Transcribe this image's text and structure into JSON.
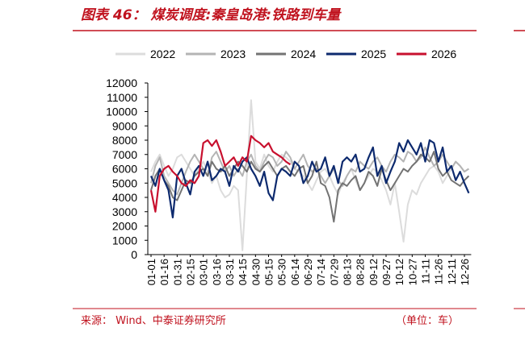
{
  "chart_data": {
    "type": "line",
    "title": "图表 46： 煤炭调度:秦皇岛港:铁路到车量",
    "source": "来源：   Wind、中泰证券研究所",
    "unit": "（单位：车）",
    "ylim": [
      0,
      12000
    ],
    "yticks": [
      0,
      1000,
      2000,
      3000,
      4000,
      5000,
      6000,
      7000,
      8000,
      9000,
      10000,
      11000,
      12000
    ],
    "categories": [
      "01-01",
      null,
      null,
      "01-16",
      null,
      null,
      "01-31",
      null,
      null,
      "02-15",
      null,
      null,
      "03-01",
      null,
      null,
      "03-16",
      null,
      null,
      "03-31",
      null,
      null,
      "04-15",
      null,
      null,
      "04-30",
      null,
      null,
      "05-15",
      null,
      null,
      "05-30",
      null,
      null,
      "06-14",
      null,
      null,
      "06-29",
      null,
      null,
      "07-14",
      null,
      null,
      "07-29",
      null,
      null,
      "08-13",
      null,
      null,
      "08-28",
      null,
      null,
      "09-12",
      null,
      null,
      "09-27",
      null,
      null,
      "10-12",
      null,
      null,
      "10-27",
      null,
      null,
      "11-11",
      null,
      null,
      "11-26",
      null,
      null,
      "12-11",
      null,
      null,
      "12-26",
      null
    ],
    "series": [
      {
        "name": "2022",
        "color": "#dcdcdc",
        "values": [
          5800,
          6500,
          7000,
          6200,
          5500,
          6000,
          6800,
          7000,
          6500,
          6000,
          5500,
          6000,
          6500,
          5800,
          5000,
          5500,
          4500,
          4000,
          4200,
          4800,
          4500,
          300,
          5500,
          10800,
          6500,
          6000,
          7000,
          6200,
          5800,
          6500,
          7000,
          6800,
          6500,
          6000,
          5800,
          5500,
          5000,
          4500,
          5200,
          5800,
          6000,
          5500,
          4800,
          4200,
          5000,
          5500,
          6000,
          5200,
          4500,
          5000,
          5500,
          6000,
          5800,
          5200,
          4500,
          3500,
          5000,
          3000,
          900,
          3500,
          4500,
          4200,
          5000,
          5500,
          6000,
          6200,
          5800,
          5000,
          5500,
          6000,
          6500,
          6200,
          5800,
          6000
        ]
      },
      {
        "name": "2023",
        "color": "#b4b4b4",
        "values": [
          5000,
          6200,
          6800,
          5500,
          5000,
          4500,
          4200,
          5000,
          5800,
          6500,
          7000,
          6500,
          6000,
          5500,
          6800,
          7200,
          6500,
          5800,
          6200,
          5500,
          6000,
          5500,
          6500,
          7000,
          6200,
          5800,
          6500,
          7000,
          6800,
          6200,
          6500,
          7200,
          6800,
          6000,
          6500,
          7000,
          6200,
          5800,
          6000,
          5500,
          5000,
          5500,
          6000,
          5200,
          4800,
          5500,
          6000,
          5800,
          6500,
          6200,
          6000,
          6500,
          6800,
          6200,
          5800,
          6500,
          7000,
          6800,
          6500,
          7200,
          7000,
          6500,
          6800,
          7500,
          6800,
          6200,
          6500,
          7000,
          6500,
          6000,
          6500,
          6200,
          5800,
          6000
        ]
      },
      {
        "name": "2024",
        "color": "#737373",
        "values": [
          4500,
          5500,
          6000,
          5200,
          4800,
          4000,
          3800,
          4500,
          5200,
          5000,
          5500,
          5800,
          6000,
          5500,
          6500,
          6000,
          5800,
          6200,
          5500,
          6000,
          6500,
          6200,
          5800,
          6500,
          6000,
          5800,
          6200,
          6500,
          6000,
          5500,
          6000,
          6200,
          5800,
          5500,
          6000,
          6200,
          5000,
          5500,
          6500,
          5000,
          4800,
          4000,
          2300,
          4500,
          5000,
          4800,
          5200,
          5500,
          4500,
          5000,
          5800,
          5500,
          4800,
          6000,
          5200,
          4500,
          5000,
          5500,
          6000,
          5800,
          6200,
          6500,
          7000,
          6800,
          6500,
          7200,
          6000,
          5500,
          5800,
          5200,
          5000,
          4800,
          5200,
          5500
        ]
      },
      {
        "name": "2025",
        "color": "#0d2a6e",
        "values": [
          5500,
          4800,
          6000,
          5200,
          4500,
          2600,
          5500,
          6000,
          5000,
          4200,
          5800,
          6200,
          5500,
          6500,
          5200,
          5500,
          6000,
          5800,
          4800,
          6200,
          5800,
          6500,
          6800,
          6000,
          5500,
          4800,
          5800,
          4300,
          3800,
          5500,
          6000,
          5800,
          5500,
          6500,
          6200,
          5000,
          5500,
          6500,
          5800,
          6000,
          6800,
          5500,
          6200,
          5000,
          6500,
          6800,
          6500,
          7000,
          5800,
          6000,
          6800,
          7500,
          5500,
          6200,
          5000,
          5800,
          6500,
          7800,
          7200,
          8000,
          7500,
          7000,
          7800,
          6500,
          8000,
          7800,
          6500,
          7500,
          5800,
          6200,
          5200,
          5800,
          5000,
          4300
        ]
      },
      {
        "name": "2026",
        "color": "#c8102e",
        "values": [
          4500,
          3000,
          5500,
          6000,
          6200,
          5800,
          5500,
          5000,
          4800,
          5200,
          5000,
          5500,
          7800,
          8000,
          7600,
          8000,
          7200,
          6200,
          6500,
          6800,
          6200,
          6800,
          6500,
          8300,
          8000,
          7800,
          7500,
          7800,
          7200,
          7000,
          6800,
          6500,
          6300,
          null,
          null,
          null,
          null,
          null,
          null,
          null,
          null,
          null,
          null,
          null,
          null,
          null,
          null,
          null,
          null,
          null,
          null,
          null,
          null,
          null,
          null,
          null,
          null,
          null,
          null,
          null,
          null,
          null,
          null,
          null,
          null,
          null,
          null,
          null,
          null,
          null,
          null,
          null,
          null,
          null
        ]
      }
    ]
  }
}
